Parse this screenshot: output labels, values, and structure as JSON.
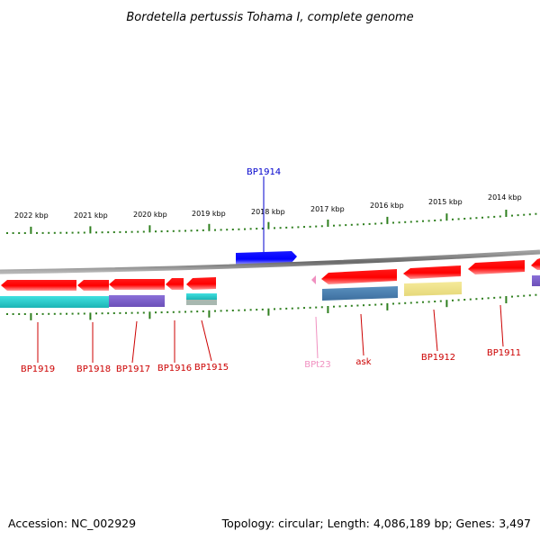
{
  "title": "Bordetella pertussis Tohama I, complete genome",
  "footer": {
    "accession": "Accession: NC_002929",
    "topology": "Topology: circular; Length: 4,086,189 bp; Genes: 3,497"
  },
  "scale_labels": [
    "2022 kbp",
    "2021 kbp",
    "2020 kbp",
    "2019 kbp",
    "2018 kbp",
    "2017 kbp",
    "2016 kbp",
    "2015 kbp",
    "2014 kbp"
  ],
  "colors": {
    "gene_red": "#ff0000",
    "forward_blue": "#0000ff",
    "tick_green": "#2f7f1f",
    "backbone_gray": "#808080",
    "cyan": "#20c8c8",
    "purple": "#7b5fc8",
    "steel_blue": "#4a7fb0",
    "khaki": "#efe38a",
    "pink": "#f090c0"
  },
  "genes": [
    {
      "label": "BP1914",
      "strand": "forward",
      "color": "#0000cc"
    },
    {
      "label": "BP1919",
      "strand": "reverse",
      "color": "#cc0000"
    },
    {
      "label": "BP1918",
      "strand": "reverse",
      "color": "#cc0000"
    },
    {
      "label": "BP1917",
      "strand": "reverse",
      "color": "#cc0000"
    },
    {
      "label": "BP1916",
      "strand": "reverse",
      "color": "#cc0000"
    },
    {
      "label": "BP1915",
      "strand": "reverse",
      "color": "#cc0000"
    },
    {
      "label": "BPt23",
      "strand": "reverse",
      "color": "#f090c0"
    },
    {
      "label": "ask",
      "strand": "reverse",
      "color": "#cc0000"
    },
    {
      "label": "BP1912",
      "strand": "reverse",
      "color": "#cc0000"
    },
    {
      "label": "BP1911",
      "strand": "reverse",
      "color": "#cc0000"
    }
  ]
}
